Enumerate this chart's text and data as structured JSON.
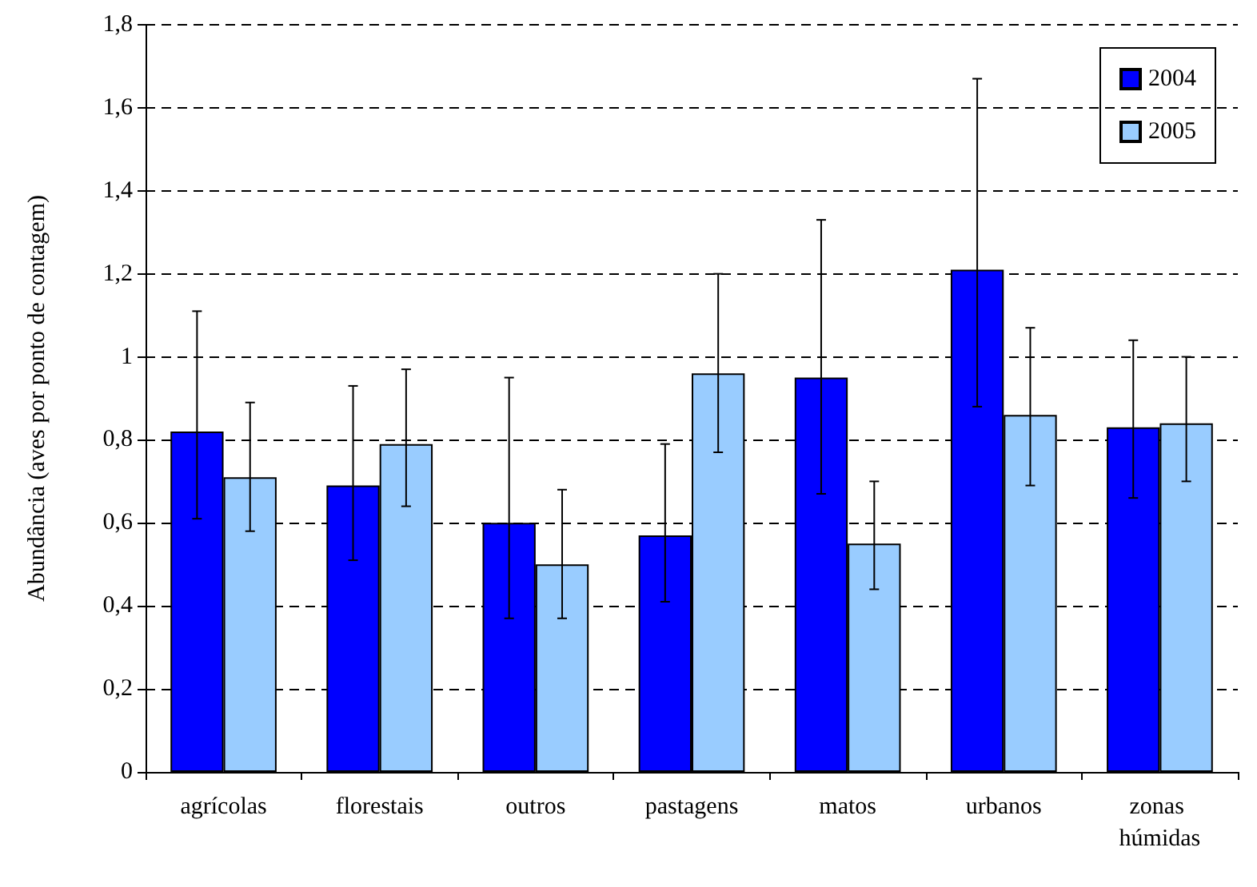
{
  "chart_data": {
    "type": "bar",
    "ylabel": "Abundância (aves por ponto de contagem)",
    "categories": [
      "agrícolas",
      "florestais",
      "outros",
      "pastagens",
      "matos",
      "urbanos",
      "zonas húmidas"
    ],
    "series": [
      {
        "name": "2004",
        "color": "#0000ff",
        "values": [
          0.82,
          0.69,
          0.6,
          0.57,
          0.95,
          1.21,
          0.83
        ],
        "errors": [
          [
            0.61,
            1.11
          ],
          [
            0.51,
            0.93
          ],
          [
            0.37,
            0.95
          ],
          [
            0.41,
            0.79
          ],
          [
            0.67,
            1.33
          ],
          [
            0.88,
            1.67
          ],
          [
            0.66,
            1.04
          ]
        ]
      },
      {
        "name": "2005",
        "color": "#99ccff",
        "values": [
          0.71,
          0.79,
          0.5,
          0.96,
          0.55,
          0.86,
          0.84
        ],
        "errors": [
          [
            0.58,
            0.89
          ],
          [
            0.64,
            0.97
          ],
          [
            0.37,
            0.68
          ],
          [
            0.77,
            1.2
          ],
          [
            0.44,
            0.7
          ],
          [
            0.69,
            1.07
          ],
          [
            0.7,
            1.0
          ]
        ]
      }
    ],
    "ylim": [
      0,
      1.8
    ],
    "yticks": [
      0,
      {
        "value": 0.2,
        "label": "0,2"
      },
      {
        "value": 0.4,
        "label": "0,4"
      },
      {
        "value": 0.6,
        "label": "0,6"
      },
      {
        "value": 0.8,
        "label": "0,8"
      },
      1,
      {
        "value": 1.2,
        "label": "1,2"
      },
      {
        "value": 1.4,
        "label": "1,4"
      },
      {
        "value": 1.6,
        "label": "1,6"
      },
      {
        "value": 1.8,
        "label": "1,8"
      }
    ],
    "grid": "y",
    "legend": "top right"
  }
}
